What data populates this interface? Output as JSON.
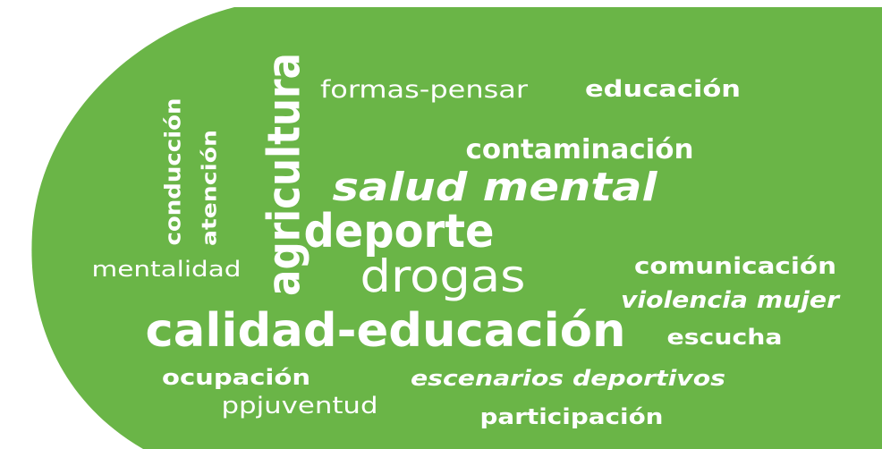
{
  "words": [
    "formas-pensar",
    "educación",
    "contaminación",
    "salud mental",
    "deporte",
    "drogas",
    "comunicación",
    "violencia mujer",
    "calidad-educación",
    "escucha",
    "mentalidad",
    "ocupación",
    "ppjuventud",
    "escenarios deportivos",
    "participación",
    "conducción",
    "atención",
    "agricultura"
  ]
}
